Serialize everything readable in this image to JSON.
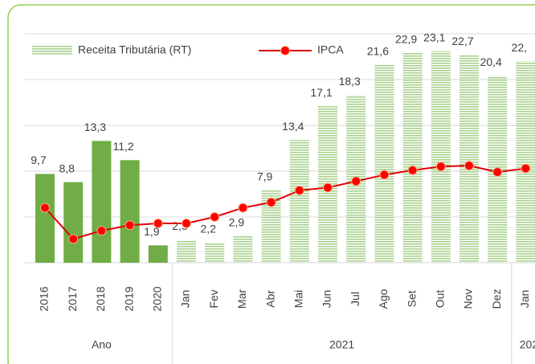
{
  "chart_data": {
    "type": "bar",
    "groups": [
      {
        "label": "Ano",
        "categories": [
          "2016",
          "2017",
          "2018",
          "2019",
          "2020"
        ]
      },
      {
        "label": "2021",
        "categories": [
          "Jan",
          "Fev",
          "Mar",
          "Abr",
          "Mai",
          "Jun",
          "Jul",
          "Ago",
          "Set",
          "Out",
          "Nov",
          "Dez"
        ]
      },
      {
        "label": "202",
        "categories": [
          "Jan"
        ]
      }
    ],
    "series": [
      {
        "name": "Receita Tributária (RT)",
        "type": "bar",
        "color": "#70ad47",
        "hatch_color": "#a9d18e",
        "patterns": [
          "solid",
          "solid",
          "solid",
          "solid",
          "solid",
          "striped",
          "striped",
          "striped",
          "striped",
          "striped",
          "striped",
          "striped",
          "striped",
          "striped",
          "striped",
          "striped",
          "striped",
          "striped"
        ],
        "values": [
          9.7,
          8.8,
          13.3,
          11.2,
          1.9,
          2.5,
          2.2,
          2.9,
          7.9,
          13.4,
          17.1,
          18.3,
          21.6,
          22.9,
          23.1,
          22.7,
          20.4,
          22.0
        ],
        "value_labels": [
          "9,7",
          "8,8",
          "13,3",
          "11,2",
          "1,9",
          "2,5",
          "2,2",
          "2,9",
          "7,9",
          "13,4",
          "17,1",
          "18,3",
          "21,6",
          "22,9",
          "23,1",
          "22,7",
          "20,4",
          "22,"
        ]
      },
      {
        "name": "IPCA",
        "type": "line",
        "color": "#e00000",
        "marker_color": "#ff0000",
        "values": [
          6.0,
          2.6,
          3.5,
          4.1,
          4.3,
          4.3,
          5.0,
          6.0,
          6.6,
          7.9,
          8.2,
          8.9,
          9.6,
          10.1,
          10.5,
          10.6,
          9.9,
          10.3
        ]
      }
    ],
    "ylim": [
      0,
      25
    ],
    "yticks": [
      0,
      5,
      10,
      15,
      20,
      25
    ],
    "grid": true,
    "legend": "top-left"
  }
}
